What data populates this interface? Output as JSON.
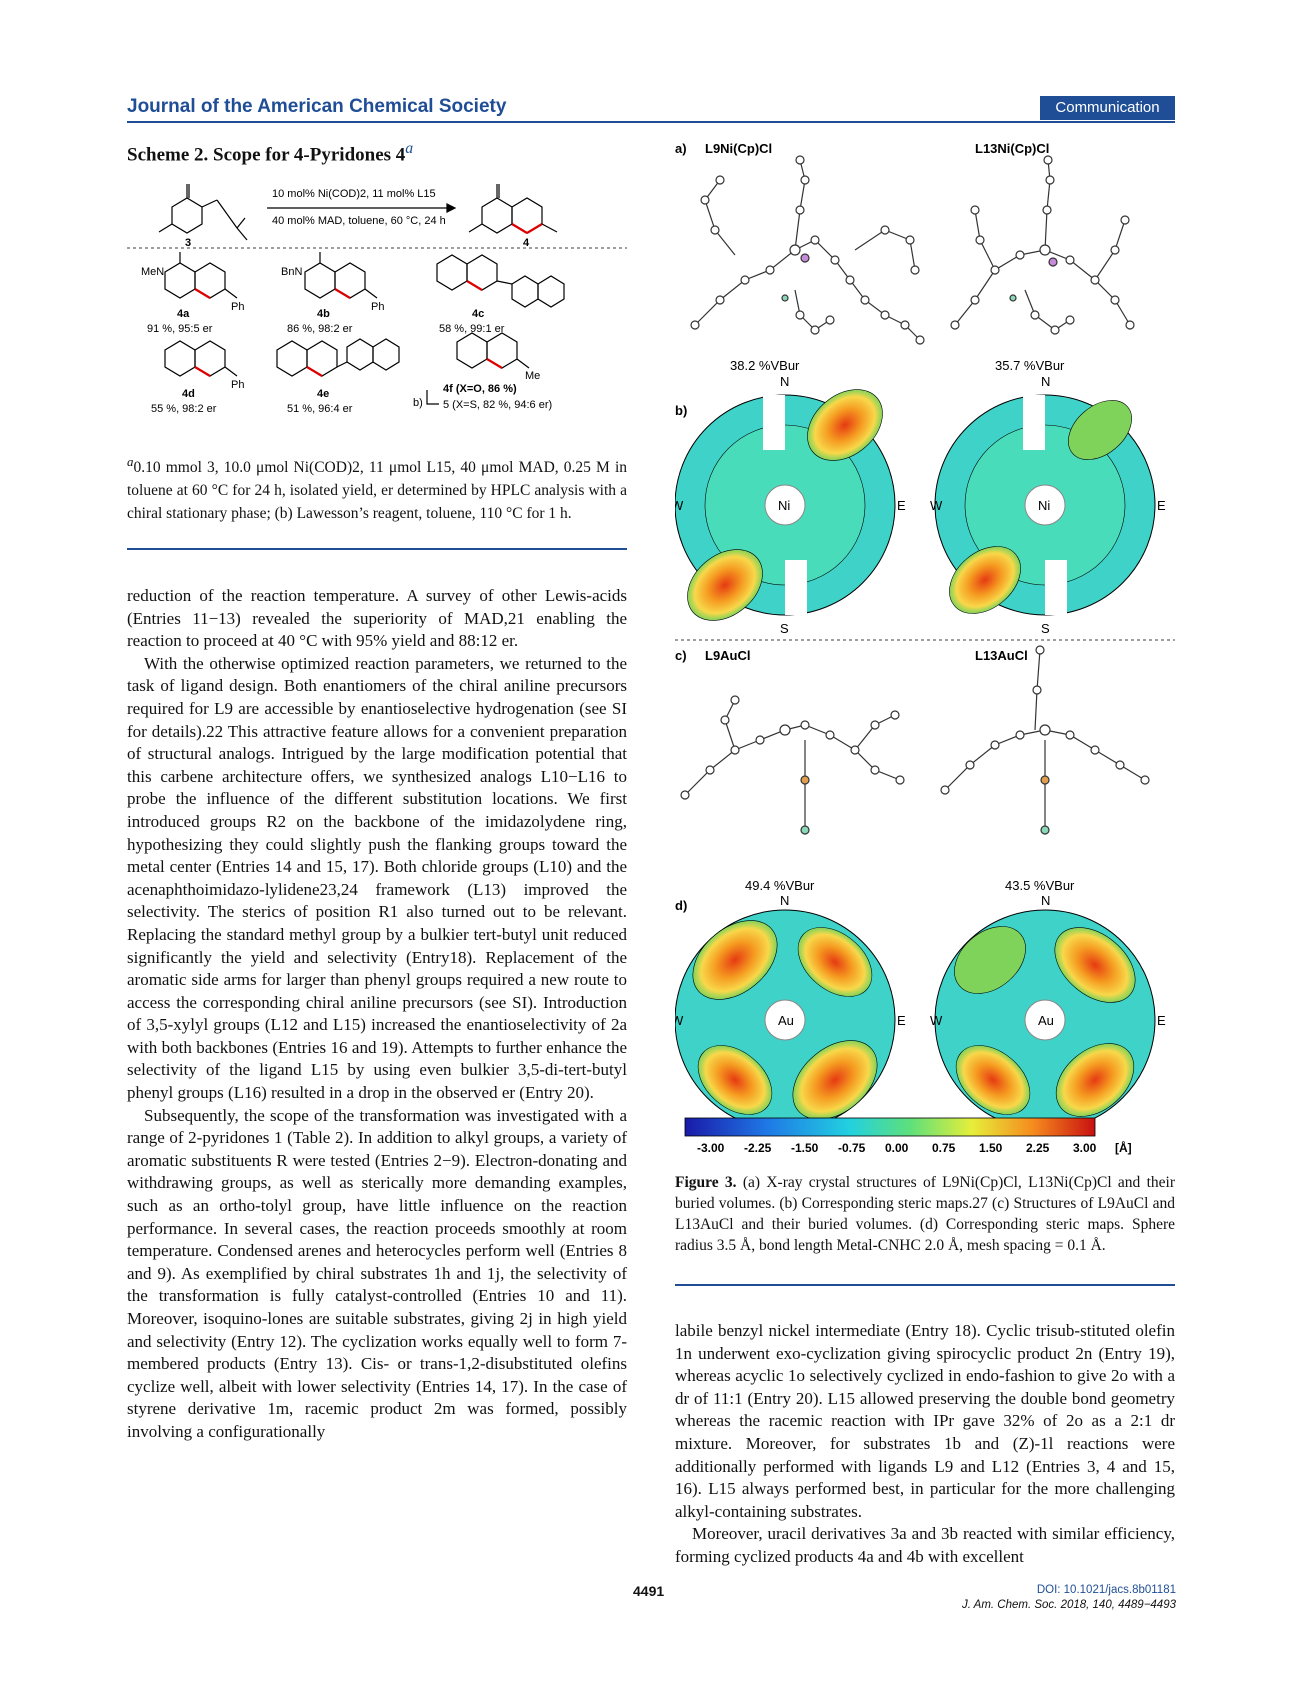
{
  "header": {
    "journal": "Journal of the American Chemical Society",
    "section": "Communication"
  },
  "scheme": {
    "title": "Scheme 2. Scope for 4-Pyridones 4",
    "title_sup": "a",
    "conditions_line1": "10 mol% Ni(COD)2, 11 mol% L15",
    "conditions_line2": "40 mol% MAD, toluene, 60 °C, 24 h",
    "substrate_label": "3",
    "product_label": "4",
    "products": [
      {
        "label": "4a",
        "result": "91 %, 95:5 er",
        "group": "MeN",
        "sub": "Ph"
      },
      {
        "label": "4b",
        "result": "86 %, 98:2 er",
        "group": "BnN",
        "sub": "Ph"
      },
      {
        "label": "4c",
        "result": "58 %, 99:1 er"
      },
      {
        "label": "4d",
        "result": "55 %, 98:2 er",
        "sub": "Ph"
      },
      {
        "label": "4e",
        "result": "51 %, 96:4 er"
      },
      {
        "label": "4f (X=O, 86 %)",
        "result": "5 (X=S, 82 %, 94:6 er)",
        "sub": "Me",
        "note": "b)"
      }
    ],
    "footnote": "0.10 mmol 3, 10.0 μmol Ni(COD)2, 11 μmol L15, 40 μmol MAD, 0.25 M in toluene at 60 °C for 24 h, isolated yield, er determined by HPLC analysis with a chiral stationary phase; (b) Lawesson’s reagent, toluene, 110 °C for 1 h."
  },
  "left_text": {
    "p1": "reduction of the reaction temperature. A survey of other Lewis-acids (Entries 11−13) revealed the superiority of MAD,21 enabling the reaction to proceed at 40 °C with 95% yield and 88:12 er.",
    "p2": "With the otherwise optimized reaction parameters, we returned to the task of ligand design. Both enantiomers of the chiral aniline precursors required for L9 are accessible by enantioselective hydrogenation (see SI for details).22 This attractive feature allows for a convenient preparation of structural analogs. Intrigued by the large modification potential that this carbene architecture offers, we synthesized analogs L10−L16 to probe the influence of the different substitution locations. We first introduced groups R2 on the backbone of the imidazolydene ring, hypothesizing they could slightly push the flanking groups toward the metal center (Entries 14 and 15, 17). Both chloride groups (L10) and the acenaphthoimidazo-lylidene23,24 framework (L13) improved the selectivity. The sterics of position R1 also turned out to be relevant. Replacing the standard methyl group by a bulkier tert-butyl unit reduced significantly the yield and selectivity (Entry18). Replacement of the aromatic side arms for larger than phenyl groups required a new route to access the corresponding chiral aniline precursors (see SI). Introduction of 3,5-xylyl groups (L12 and L15) increased the enantioselectivity of 2a with both backbones (Entries 16 and 19). Attempts to further enhance the selectivity of the ligand L15 by using even bulkier 3,5-di-tert-butyl phenyl groups (L16) resulted in a drop in the observed er (Entry 20).",
    "p3": "Subsequently, the scope of the transformation was investigated with a range of 2-pyridones 1 (Table 2). In addition to alkyl groups, a variety of aromatic substituents R were tested (Entries 2−9). Electron-donating and withdrawing groups, as well as sterically more demanding examples, such as an ortho-tolyl group, have little influence on the reaction performance. In several cases, the reaction proceeds smoothly at room temperature. Condensed arenes and heterocycles perform well (Entries 8 and 9). As exemplified by chiral substrates 1h and 1j, the selectivity of the transformation is fully catalyst-controlled (Entries 10 and 11). Moreover, isoquino-lones are suitable substrates, giving 2j in high yield and selectivity (Entry 12). The cyclization works equally well to form 7-membered products (Entry 13). Cis- or trans-1,2-disubstituted olefins cyclize well, albeit with lower selectivity (Entries 14, 17). In the case of styrene derivative 1m, racemic product 2m was formed, possibly involving a configurationally"
  },
  "figure": {
    "panel_a": "a)",
    "panel_b": "b)",
    "panel_c": "c)",
    "panel_d": "d)",
    "ni_left_title": "L9Ni(Cp)Cl",
    "ni_right_title": "L13Ni(Cp)Cl",
    "au_left_title": "L9AuCl",
    "au_right_title": "L13AuCl",
    "vbur": [
      "38.2 %VBur",
      "35.7 %VBur",
      "49.4 %VBur",
      "43.5 %VBur"
    ],
    "compass": {
      "n": "N",
      "s": "S",
      "w": "W",
      "e": "E"
    },
    "metals": [
      "Ni",
      "Ni",
      "Au",
      "Au"
    ],
    "scale_ticks": [
      "-3.00",
      "-2.25",
      "-1.50",
      "-0.75",
      "0.00",
      "0.75",
      "1.50",
      "2.25",
      "3.00"
    ],
    "scale_unit": "[Å]",
    "caption_label": "Figure 3.",
    "caption": "(a) X-ray crystal structures of L9Ni(Cp)Cl, L13Ni(Cp)Cl and their buried volumes. (b) Corresponding steric maps.27 (c) Structures of L9AuCl and L13AuCl and their buried volumes. (d) Corresponding steric maps. Sphere radius 3.5 Å, bond length Metal-CNHC 2.0 Å, mesh spacing = 0.1 Å."
  },
  "right_text": {
    "p1": "labile benzyl nickel intermediate (Entry 18). Cyclic trisub-stituted olefin 1n underwent exo-cyclization giving spirocyclic product 2n (Entry 19), whereas acyclic 1o selectively cyclized in endo-fashion to give 2o with a dr of 11:1 (Entry 20). L15 allowed preserving the double bond geometry whereas the racemic reaction with IPr gave 32% of 2o as a 2:1 dr mixture. Moreover, for substrates 1b and (Z)-1l reactions were additionally performed with ligands L9 and L12 (Entries 3, 4 and 15, 16). L15 always performed best, in particular for the more challenging alkyl-containing substrates.",
    "p2": "Moreover, uracil derivatives 3a and 3b reacted with similar efficiency, forming cyclized products 4a and 4b with excellent"
  },
  "footer": {
    "page": "4491",
    "doi": "DOI: 10.1021/jacs.8b01181",
    "citation": "J. Am. Chem. Soc. 2018, 140, 4489−4493"
  }
}
